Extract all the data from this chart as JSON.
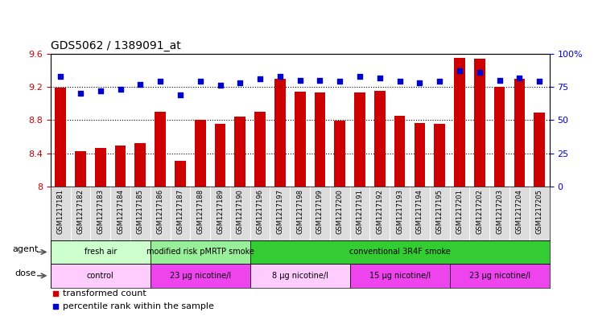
{
  "title": "GDS5062 / 1389091_at",
  "samples": [
    "GSM1217181",
    "GSM1217182",
    "GSM1217183",
    "GSM1217184",
    "GSM1217185",
    "GSM1217186",
    "GSM1217187",
    "GSM1217188",
    "GSM1217189",
    "GSM1217190",
    "GSM1217196",
    "GSM1217197",
    "GSM1217198",
    "GSM1217199",
    "GSM1217200",
    "GSM1217191",
    "GSM1217192",
    "GSM1217193",
    "GSM1217194",
    "GSM1217195",
    "GSM1217201",
    "GSM1217202",
    "GSM1217203",
    "GSM1217204",
    "GSM1217205"
  ],
  "bar_values": [
    9.19,
    8.43,
    8.46,
    8.49,
    8.52,
    8.9,
    8.31,
    8.8,
    8.75,
    8.84,
    8.9,
    9.3,
    9.14,
    9.13,
    8.79,
    9.13,
    9.15,
    8.85,
    8.76,
    8.75,
    9.55,
    9.54,
    9.2,
    9.3,
    8.89
  ],
  "dot_values": [
    83,
    70,
    72,
    73,
    77,
    79,
    69,
    79,
    76,
    78,
    81,
    83,
    80,
    80,
    79,
    83,
    82,
    79,
    78,
    79,
    87,
    86,
    80,
    82,
    79
  ],
  "bar_color": "#cc0000",
  "dot_color": "#0000cc",
  "ylim_left": [
    8.0,
    9.6
  ],
  "ylim_right": [
    0,
    100
  ],
  "yticks_left": [
    8.0,
    8.4,
    8.8,
    9.2,
    9.6
  ],
  "ytick_labels_left": [
    "8",
    "8.4",
    "8.8",
    "9.2",
    "9.6"
  ],
  "yticks_right": [
    0,
    25,
    50,
    75,
    100
  ],
  "ytick_labels_right": [
    "0",
    "25",
    "50",
    "75",
    "100%"
  ],
  "agent_groups": [
    {
      "label": "fresh air",
      "start": 0,
      "end": 5,
      "color": "#ccffcc"
    },
    {
      "label": "modified risk pMRTP smoke",
      "start": 5,
      "end": 10,
      "color": "#99ee99"
    },
    {
      "label": "conventional 3R4F smoke",
      "start": 10,
      "end": 25,
      "color": "#33cc33"
    }
  ],
  "dose_groups": [
    {
      "label": "control",
      "start": 0,
      "end": 5,
      "color": "#ffccff"
    },
    {
      "label": "23 μg nicotine/l",
      "start": 5,
      "end": 10,
      "color": "#ee44ee"
    },
    {
      "label": "8 μg nicotine/l",
      "start": 10,
      "end": 15,
      "color": "#ffccff"
    },
    {
      "label": "15 μg nicotine/l",
      "start": 15,
      "end": 20,
      "color": "#ee44ee"
    },
    {
      "label": "23 μg nicotine/l",
      "start": 20,
      "end": 25,
      "color": "#ee44ee"
    }
  ],
  "agent_label": "agent",
  "dose_label": "dose",
  "legend_bar": "transformed count",
  "legend_dot": "percentile rank within the sample",
  "bar_width": 0.55,
  "xticklabel_bg": "#dddddd",
  "grid_values": [
    8.4,
    8.8,
    9.2
  ]
}
